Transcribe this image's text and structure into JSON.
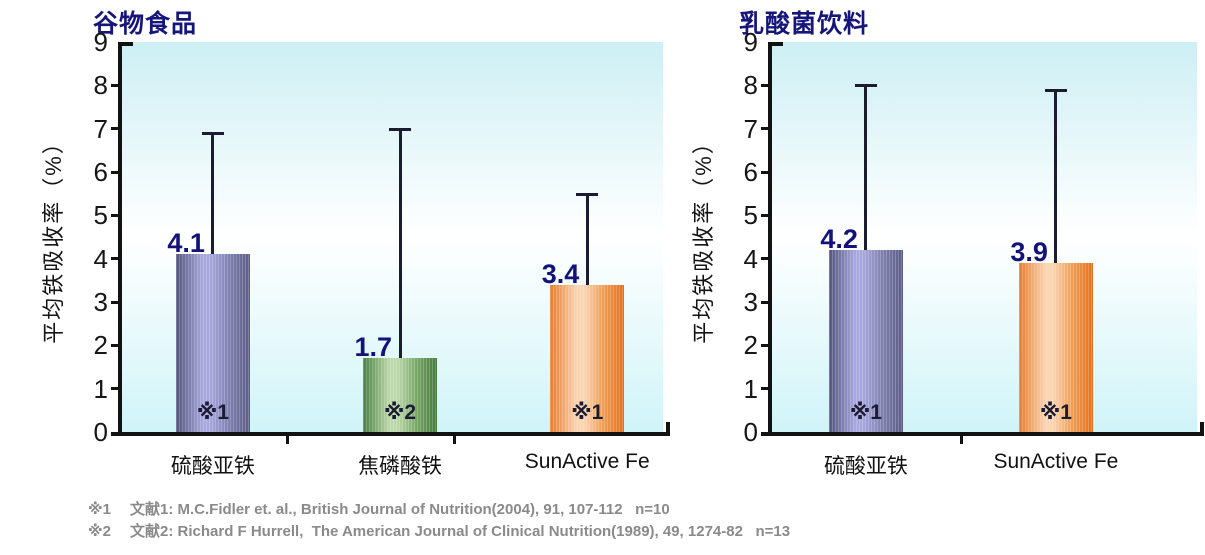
{
  "chart_data": [
    {
      "type": "bar",
      "title": "谷物食品",
      "ylabel": "平均铁吸收率（%）",
      "xlabel": "",
      "ylim": [
        0,
        9
      ],
      "yticks": [
        0,
        1,
        2,
        3,
        4,
        5,
        6,
        7,
        8,
        9
      ],
      "grid": false,
      "legend": "none",
      "categories": [
        "硫酸亚铁",
        "焦磷酸铁",
        "SunActive Fe"
      ],
      "values": [
        4.1,
        1.7,
        3.4
      ],
      "value_labels": [
        "4.1",
        "1.7",
        "3.4"
      ],
      "error_bar_tops": [
        6.9,
        7.0,
        5.5
      ],
      "bar_footnote_refs": [
        "※1",
        "※2",
        "※1"
      ],
      "bar_colors": [
        {
          "edge": "#54547e",
          "light": "#a8a8de",
          "mid": "#8080b0",
          "edge2": "#5c5c86"
        },
        {
          "edge": "#4a8041",
          "light": "#bcd9ab",
          "mid": "#7aa969",
          "edge2": "#467a3e"
        },
        {
          "edge": "#e87c2e",
          "light": "#fbd4b2",
          "mid": "#f09e55",
          "edge2": "#e2701f"
        }
      ],
      "plot_bg": {
        "top": "#cdeff4",
        "mid": "#ffffff",
        "bottom": "#d0f4f8"
      }
    },
    {
      "type": "bar",
      "title": "乳酸菌饮料",
      "ylabel": "平均铁吸收率（%）",
      "xlabel": "",
      "ylim": [
        0,
        9
      ],
      "yticks": [
        0,
        1,
        2,
        3,
        4,
        5,
        6,
        7,
        8,
        9
      ],
      "grid": false,
      "legend": "none",
      "categories": [
        "硫酸亚铁",
        "SunActive Fe"
      ],
      "values": [
        4.2,
        3.9
      ],
      "value_labels": [
        "4.2",
        "3.9"
      ],
      "error_bar_tops": [
        8.0,
        7.9
      ],
      "bar_footnote_refs": [
        "※1",
        "※1"
      ],
      "bar_colors": [
        {
          "edge": "#54547e",
          "light": "#a8a8de",
          "mid": "#8080b0",
          "edge2": "#5c5c86"
        },
        {
          "edge": "#e87c2e",
          "light": "#fbd4b2",
          "mid": "#f09e55",
          "edge2": "#e2701f"
        }
      ],
      "plot_bg": {
        "top": "#cdeff4",
        "mid": "#ffffff",
        "bottom": "#d0f4f8"
      }
    }
  ],
  "footnotes": [
    {
      "marker": "※1",
      "text": "文献1: M.C.Fidler et. al., British Journal of Nutrition(2004), 91, 107-112   n=10"
    },
    {
      "marker": "※2",
      "text": "文献2: Richard F Hurrell,  The American Journal of Clinical Nutrition(1989), 49, 1274-82   n=13"
    }
  ],
  "accent_colors": {
    "title_navy": "#15157c",
    "value_navy": "#12127a",
    "axis_black": "#121212",
    "footnote_gray": "#8a8a8a"
  }
}
